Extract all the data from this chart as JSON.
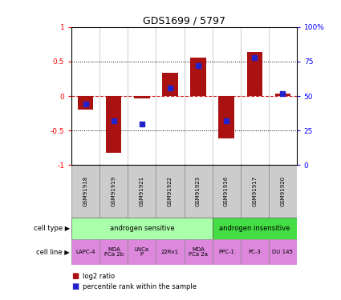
{
  "title": "GDS1699 / 5797",
  "samples": [
    "GSM91918",
    "GSM91919",
    "GSM91921",
    "GSM91922",
    "GSM91923",
    "GSM91916",
    "GSM91917",
    "GSM91920"
  ],
  "log2_ratio": [
    -0.2,
    -0.82,
    -0.04,
    0.34,
    0.56,
    -0.62,
    0.64,
    0.03
  ],
  "percentile_rank": [
    44,
    32,
    30,
    56,
    72,
    32,
    78,
    52
  ],
  "cell_types": [
    {
      "label": "androgen sensitive",
      "start": 0,
      "end": 5,
      "color": "#aaffaa"
    },
    {
      "label": "androgen insensitive",
      "start": 5,
      "end": 8,
      "color": "#44dd44"
    }
  ],
  "cell_lines": [
    {
      "label": "LAPC-4",
      "start": 0,
      "end": 1
    },
    {
      "label": "MDA\nPCa 2b",
      "start": 1,
      "end": 2
    },
    {
      "label": "LNCa\nP",
      "start": 2,
      "end": 3
    },
    {
      "label": "22Rv1",
      "start": 3,
      "end": 4
    },
    {
      "label": "MDA\nPCa 2a",
      "start": 4,
      "end": 5
    },
    {
      "label": "PPC-1",
      "start": 5,
      "end": 6
    },
    {
      "label": "PC-3",
      "start": 6,
      "end": 7
    },
    {
      "label": "DU 145",
      "start": 7,
      "end": 8
    }
  ],
  "cell_line_color": "#dd88dd",
  "bar_color": "#aa1111",
  "dot_color": "#2222cc",
  "ylim": [
    -1,
    1
  ],
  "y2lim": [
    0,
    100
  ],
  "yticks": [
    -1,
    -0.5,
    0,
    0.5,
    1
  ],
  "ytick_labels": [
    "-1",
    "-0.5",
    "0",
    "0.5",
    "1"
  ],
  "y2ticks": [
    0,
    25,
    50,
    75,
    100
  ],
  "y2tick_labels": [
    "0",
    "25",
    "50",
    "75",
    "100%"
  ],
  "hline_y": 0,
  "dotted_lines": [
    -0.5,
    0.5
  ],
  "bar_width": 0.55,
  "dot_size": 25,
  "gsm_bg": "#cccccc",
  "left_label_color": "#555555"
}
